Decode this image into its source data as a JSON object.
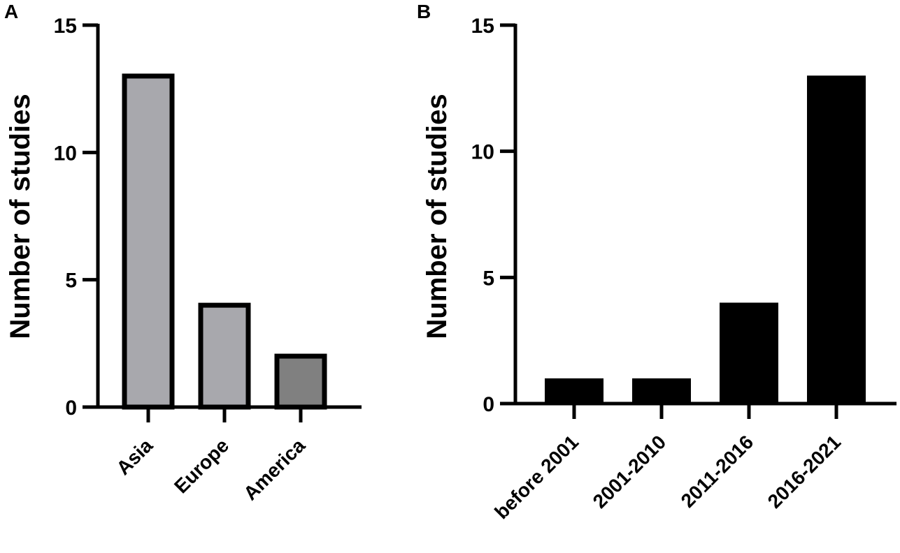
{
  "chart_data": [
    {
      "panel": "A",
      "type": "bar",
      "categories": [
        "Asia",
        "Europe",
        "America"
      ],
      "values": [
        13,
        4,
        2
      ],
      "colors": [
        "#a8a8ad",
        "#a8a8ad",
        "#808080"
      ],
      "ylabel": "Number of studies",
      "xlabel": "",
      "ylim": [
        0,
        15
      ],
      "yticks": [
        0,
        5,
        10,
        15
      ],
      "grid": false
    },
    {
      "panel": "B",
      "type": "bar",
      "categories": [
        "before 2001",
        "2001-2010",
        "2011-2016",
        "2016-2021"
      ],
      "values": [
        1,
        1,
        4,
        13
      ],
      "colors": [
        "#000000",
        "#000000",
        "#000000",
        "#000000"
      ],
      "ylabel": "Number of studies",
      "xlabel": "",
      "ylim": [
        0,
        15
      ],
      "yticks": [
        0,
        5,
        10,
        15
      ],
      "grid": false
    }
  ]
}
